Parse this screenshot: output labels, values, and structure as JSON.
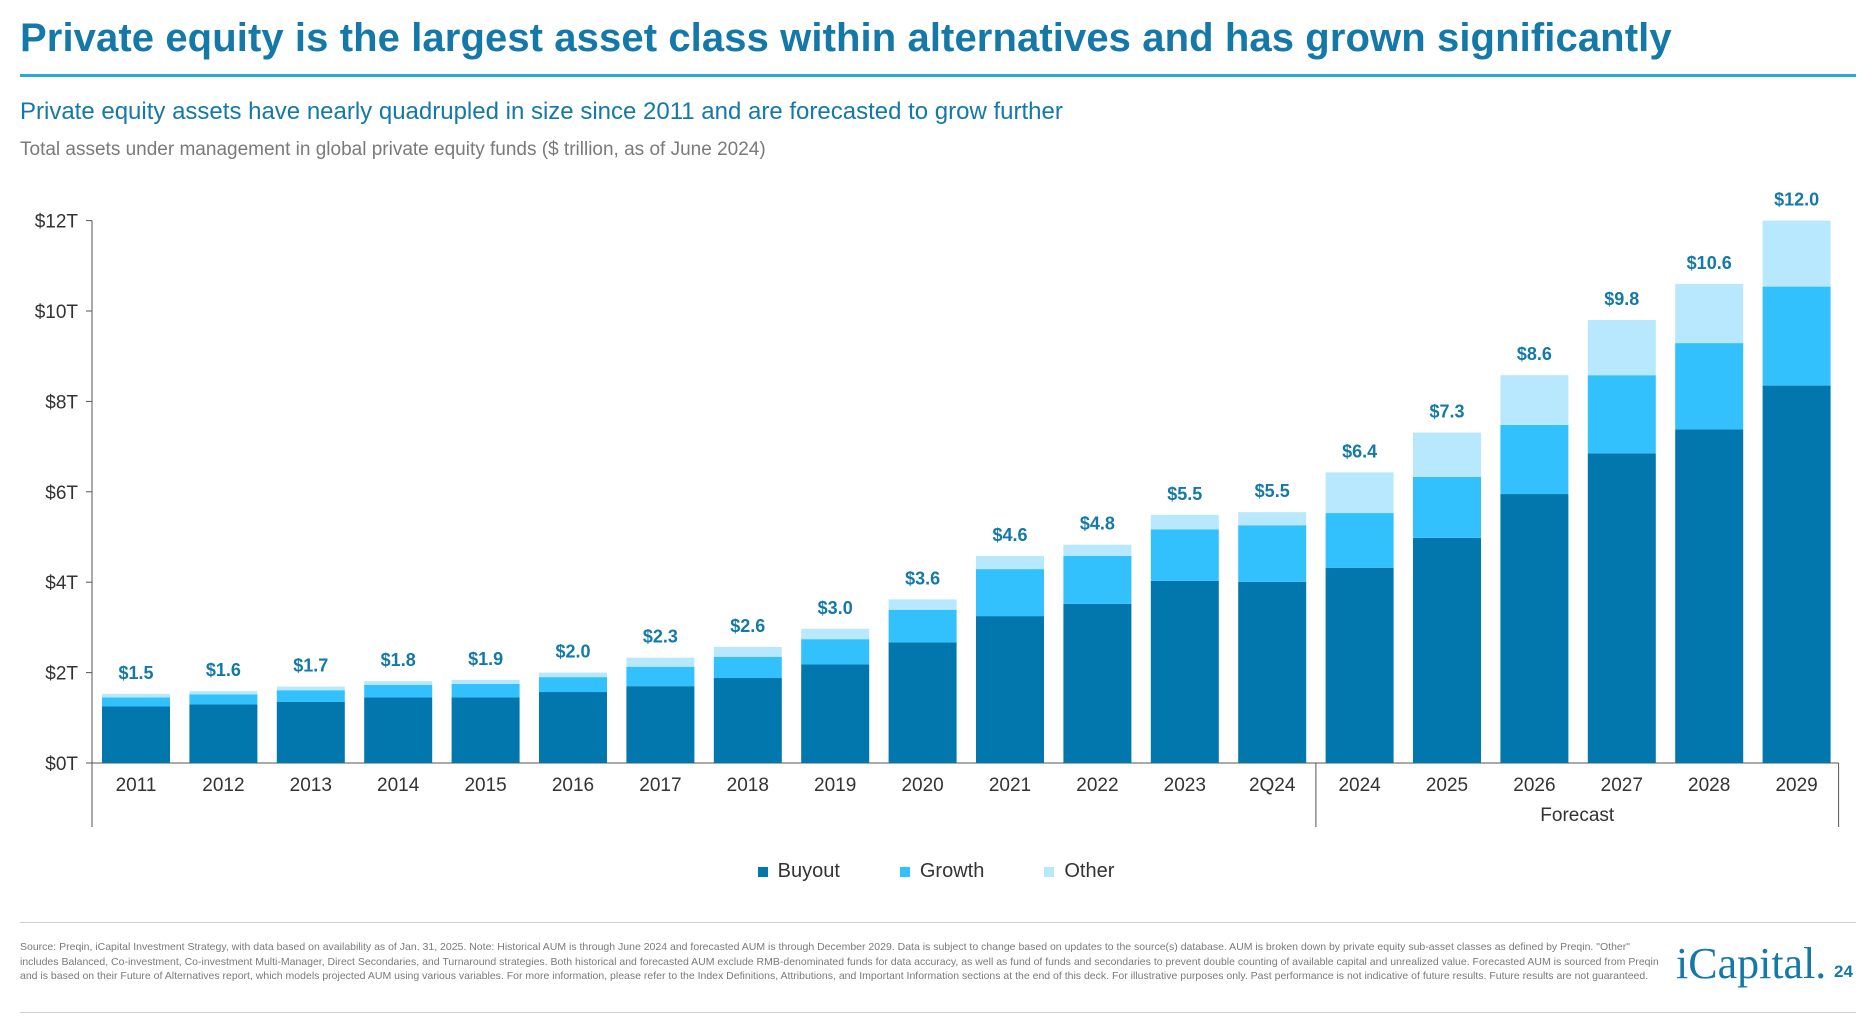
{
  "slide": {
    "title": "Private equity is the largest asset class within alternatives and has grown significantly",
    "subtitle": "Private equity assets have nearly quadrupled in size since 2011 and are forecasted to grow further",
    "subsubtitle": "Total assets under management in global private equity funds ($ trillion, as of June 2024)",
    "source": "Source: Preqin, iCapital Investment Strategy, with data based on availability as of Jan. 31, 2025. Note: Historical AUM is through June 2024 and forecasted AUM is through December 2029. Data is subject to change based on updates to the source(s) database. AUM is broken down by private equity sub-asset classes as defined by Preqin. \"Other\" includes Balanced, Co-investment, Co-investment Multi-Manager, Direct Secondaries, and Turnaround strategies. Both historical and forecasted AUM exclude RMB-denominated funds for data accuracy, as well as fund of funds and secondaries to prevent double counting of available capital and unrealized value. Forecasted AUM is sourced from Preqin and is based on their Future of Alternatives report, which models projected AUM using various variables. For more information, please refer to the Index Definitions, Attributions, and Important Information sections at the end of this deck. For illustrative purposes only. Past performance is not indicative of future results. Future results are not guaranteed.",
    "brand": "iCapital.",
    "page_number": "24"
  },
  "legend": [
    {
      "label": "Buyout",
      "color": "#0277ad"
    },
    {
      "label": "Growth",
      "color": "#33c1fd"
    },
    {
      "label": "Other",
      "color": "#b8e8fd"
    }
  ],
  "chart_data": {
    "type": "bar",
    "stacked": true,
    "categories": [
      "2011",
      "2012",
      "2013",
      "2014",
      "2015",
      "2016",
      "2017",
      "2018",
      "2019",
      "2020",
      "2021",
      "2022",
      "2023",
      "2Q24",
      "2024",
      "2025",
      "2026",
      "2027",
      "2028",
      "2029"
    ],
    "series": [
      {
        "name": "Buyout",
        "color": "#0277ad",
        "values": [
          1.25,
          1.3,
          1.35,
          1.45,
          1.45,
          1.57,
          1.7,
          1.88,
          2.18,
          2.67,
          3.25,
          3.52,
          4.03,
          4.01,
          4.32,
          4.98,
          5.95,
          6.85,
          7.38,
          8.35
        ]
      },
      {
        "name": "Growth",
        "color": "#33c1fd",
        "values": [
          0.2,
          0.22,
          0.26,
          0.28,
          0.3,
          0.33,
          0.43,
          0.47,
          0.56,
          0.72,
          1.04,
          1.06,
          1.14,
          1.25,
          1.21,
          1.35,
          1.53,
          1.73,
          1.91,
          2.19
        ]
      },
      {
        "name": "Other",
        "color": "#b8e8fd",
        "values": [
          0.08,
          0.07,
          0.08,
          0.08,
          0.09,
          0.1,
          0.2,
          0.22,
          0.23,
          0.23,
          0.29,
          0.25,
          0.32,
          0.29,
          0.9,
          0.98,
          1.1,
          1.22,
          1.31,
          1.46
        ]
      }
    ],
    "total_labels": [
      "$1.5",
      "$1.6",
      "$1.7",
      "$1.8",
      "$1.9",
      "$2.0",
      "$2.3",
      "$2.6",
      "$3.0",
      "$3.6",
      "$4.6",
      "$4.8",
      "$5.5",
      "$5.5",
      "$6.4",
      "$7.3",
      "$8.6",
      "$9.8",
      "$10.6",
      "$12.0"
    ],
    "y_ticks": [
      0,
      2,
      4,
      6,
      8,
      10,
      12
    ],
    "y_tick_labels": [
      "$0T",
      "$2T",
      "$4T",
      "$6T",
      "$8T",
      "$10T",
      "$12T"
    ],
    "ylim": [
      0,
      12
    ],
    "forecast_label": "Forecast",
    "forecast_start_index": 14,
    "grid": false,
    "legend_position": "bottom"
  }
}
